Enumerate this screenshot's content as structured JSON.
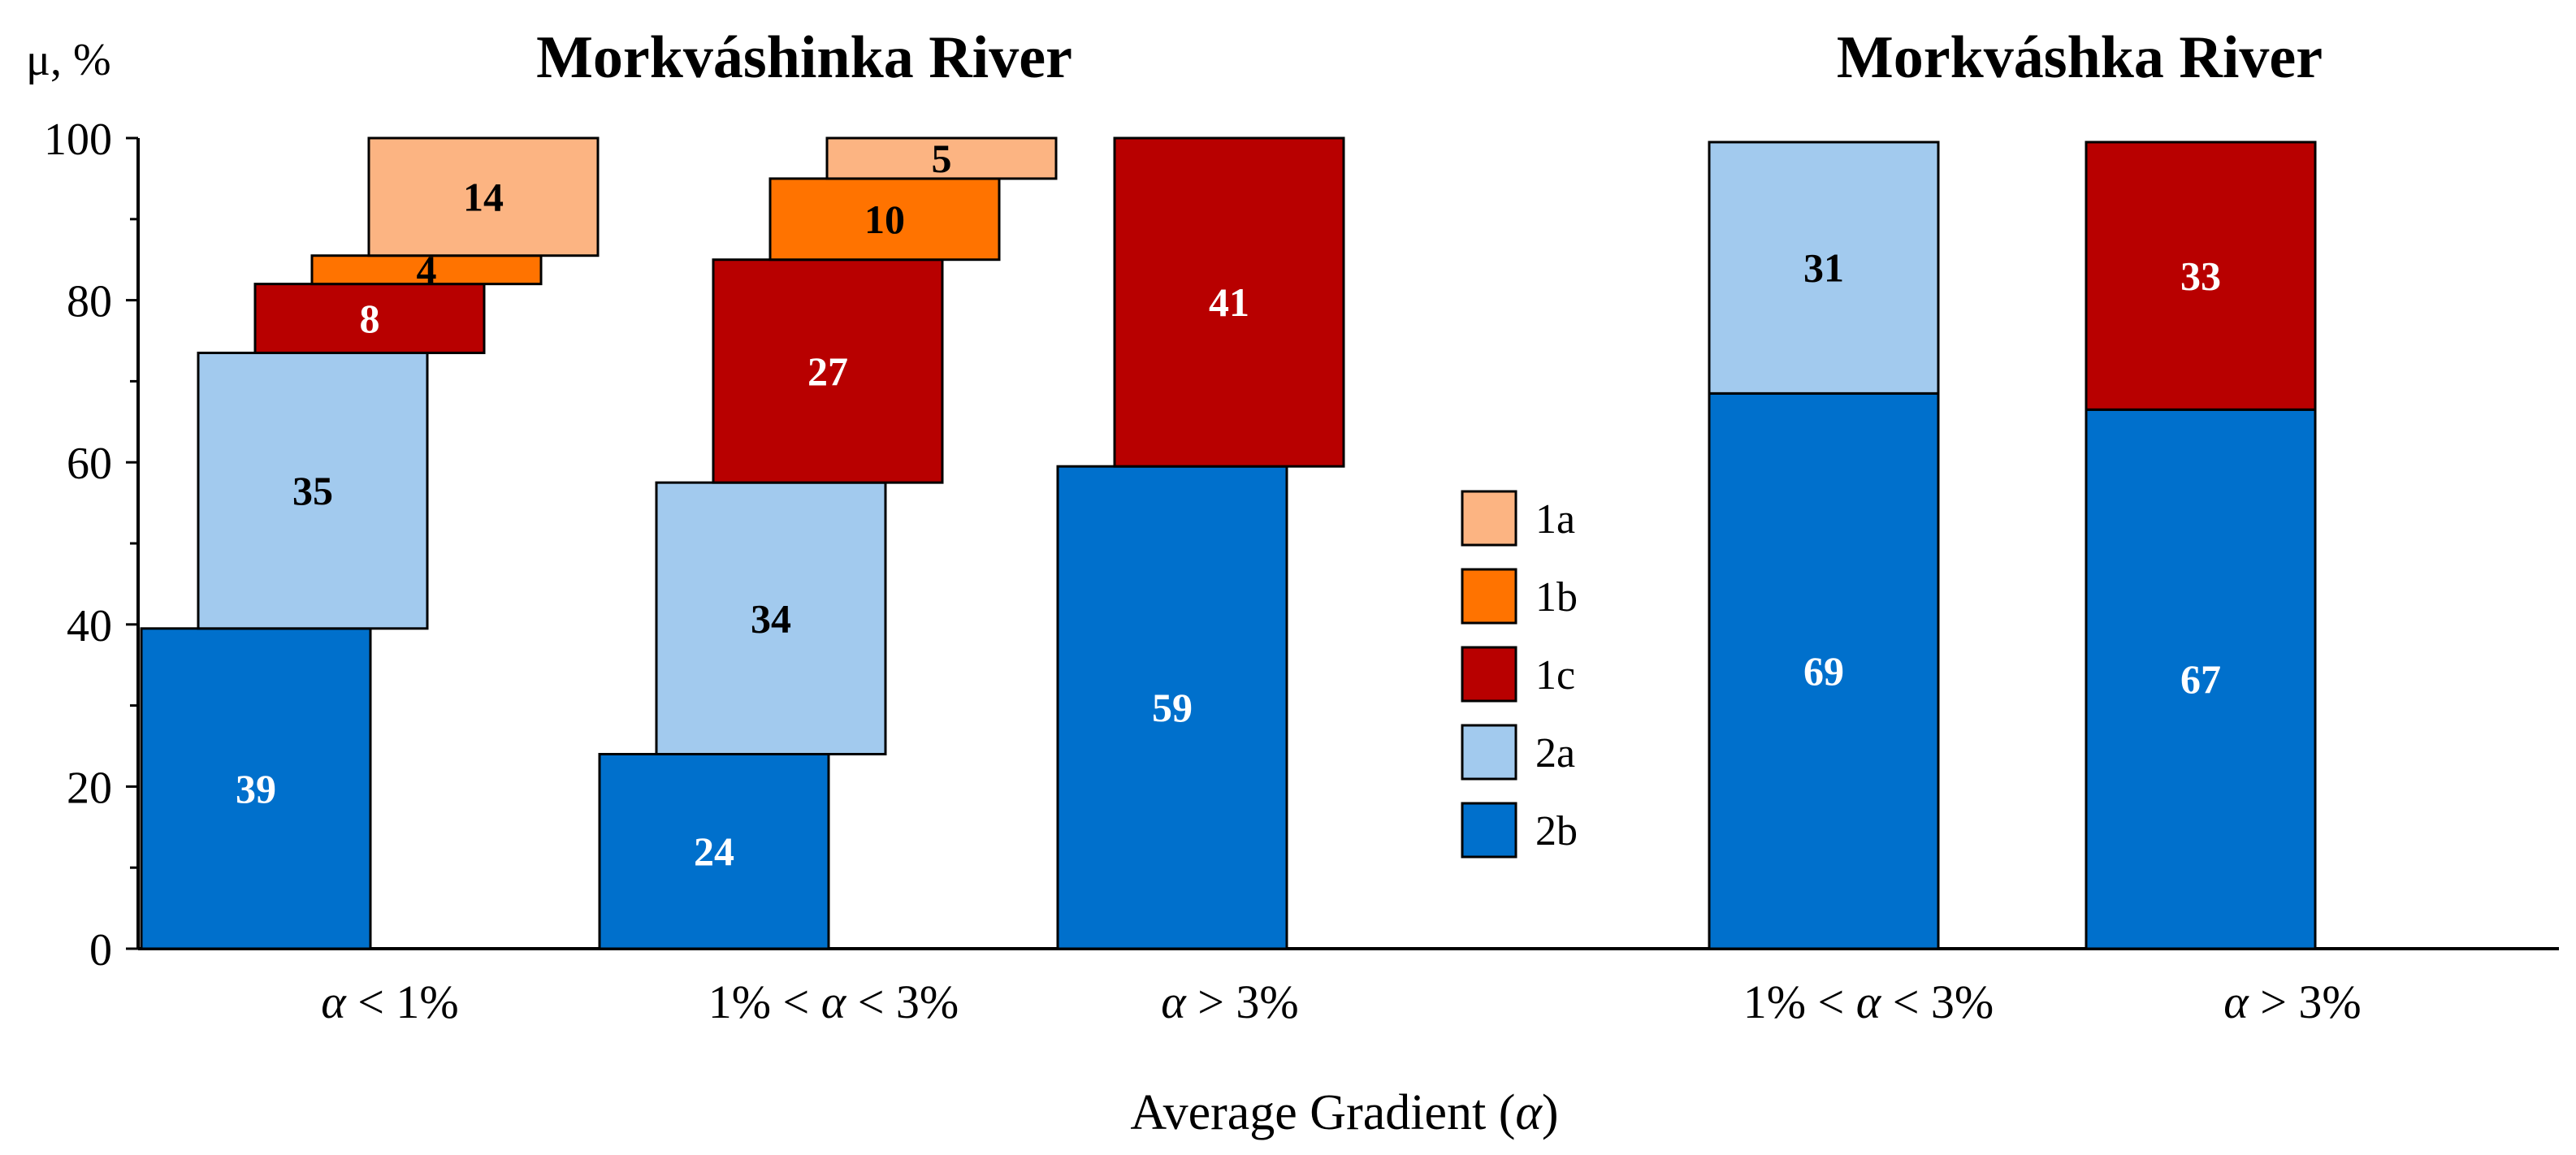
{
  "chart_data": {
    "type": "bar",
    "subtype": "staggered-stacked",
    "y_unit_label": "μ, %",
    "ylim": [
      0,
      100
    ],
    "y_ticks": [
      0,
      20,
      40,
      60,
      80,
      100
    ],
    "xlabel": "Average Gradient (",
    "xlabel_symbol": "α",
    "xlabel_close": ")",
    "legend": {
      "placement": "center",
      "entries": [
        {
          "key": "1a",
          "label": "1a",
          "color": "#FCB482"
        },
        {
          "key": "1b",
          "label": "1b",
          "color": "#FF7300"
        },
        {
          "key": "1c",
          "label": "1c",
          "color": "#B80000"
        },
        {
          "key": "2a",
          "label": "2a",
          "color": "#A2CAEE"
        },
        {
          "key": "2b",
          "label": "2b",
          "color": "#0070CC"
        }
      ]
    },
    "groups": [
      {
        "title": "Morkváshinka River",
        "bars": [
          {
            "category": "α < 1%",
            "segments": [
              {
                "type": "2b",
                "value": 39,
                "label": "39",
                "from": 0,
                "to": 39.5
              },
              {
                "type": "2a",
                "value": 35,
                "label": "35",
                "from": 39.5,
                "to": 73.5
              },
              {
                "type": "1c",
                "value": 8,
                "label": "8",
                "from": 73.5,
                "to": 82
              },
              {
                "type": "1b",
                "value": 4,
                "label": "4",
                "from": 82,
                "to": 85.5
              },
              {
                "type": "1a",
                "value": 14,
                "label": "14",
                "from": 85.5,
                "to": 100
              }
            ]
          },
          {
            "category": "1% < α < 3%",
            "segments": [
              {
                "type": "2b",
                "value": 24,
                "label": "24",
                "from": 0,
                "to": 24
              },
              {
                "type": "2a",
                "value": 34,
                "label": "34",
                "from": 24,
                "to": 57.5
              },
              {
                "type": "1c",
                "value": 27,
                "label": "27",
                "from": 57.5,
                "to": 85
              },
              {
                "type": "1b",
                "value": 10,
                "label": "10",
                "from": 85,
                "to": 95
              },
              {
                "type": "1a",
                "value": 5,
                "label": "5",
                "from": 95,
                "to": 100
              }
            ]
          },
          {
            "category": "α > 3%",
            "segments": [
              {
                "type": "2b",
                "value": 59,
                "label": "59",
                "from": 0,
                "to": 59.5
              },
              {
                "type": "1c",
                "value": 41,
                "label": "41",
                "from": 59.5,
                "to": 100
              }
            ]
          }
        ]
      },
      {
        "title": "Morkváshka River",
        "bars": [
          {
            "category": "1% < α < 3%",
            "segments": [
              {
                "type": "2b",
                "value": 69,
                "label": "69",
                "from": 0,
                "to": 68.5
              },
              {
                "type": "2a",
                "value": 31,
                "label": "31",
                "from": 68.5,
                "to": 99.5
              }
            ]
          },
          {
            "category": "α > 3%",
            "segments": [
              {
                "type": "2b",
                "value": 67,
                "label": "67",
                "from": 0,
                "to": 66.5
              },
              {
                "type": "1c",
                "value": 33,
                "label": "33",
                "from": 66.5,
                "to": 99.5
              }
            ]
          }
        ]
      }
    ]
  }
}
